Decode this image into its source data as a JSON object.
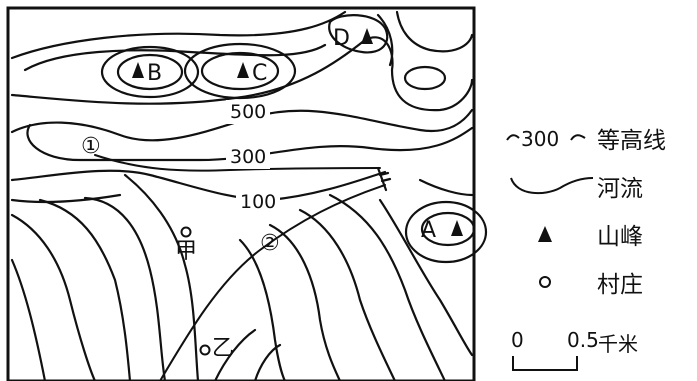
{
  "peaks": {
    "A": "A",
    "B": "B",
    "C": "C",
    "D": "D"
  },
  "places": {
    "jia": "甲",
    "yi": "乙"
  },
  "rivers": {
    "r1": "①",
    "r2": "②"
  },
  "contour_labels": {
    "c500": "500",
    "c300": "300",
    "c100": "100"
  },
  "legend": {
    "contour_sample": "300",
    "contour": "等高线",
    "river": "河流",
    "peak": "山峰",
    "village": "村庄"
  },
  "scale": {
    "zero": "0",
    "value": "0.5",
    "unit": "千米"
  },
  "colors": {
    "ink": "#111111",
    "background": "#ffffff"
  }
}
